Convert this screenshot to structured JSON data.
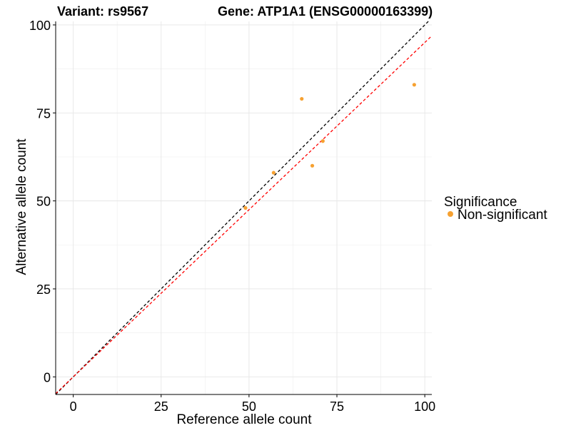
{
  "chart_data": {
    "type": "scatter",
    "title_left": "Variant: rs9567",
    "title_right": "Gene: ATP1A1 (ENSG00000163399)",
    "xlabel": "Reference allele count",
    "ylabel": "Alternative allele count",
    "xlim": [
      -5,
      102
    ],
    "ylim": [
      -5,
      101
    ],
    "xticks": [
      0,
      25,
      50,
      75,
      100
    ],
    "yticks": [
      0,
      25,
      50,
      75,
      100
    ],
    "grid": true,
    "series": [
      {
        "name": "Non-significant",
        "color": "#F6A131",
        "points": [
          {
            "x": 49,
            "y": 48
          },
          {
            "x": 57,
            "y": 58
          },
          {
            "x": 65,
            "y": 79
          },
          {
            "x": 68,
            "y": 60
          },
          {
            "x": 71,
            "y": 67
          },
          {
            "x": 97,
            "y": 83
          }
        ]
      }
    ],
    "reference_lines": [
      {
        "name": "identity-line",
        "slope": 1.0,
        "intercept": 0,
        "color": "#000000",
        "style": "dashed"
      },
      {
        "name": "fit-line",
        "slope": 0.95,
        "intercept": 0,
        "color": "#FF0000",
        "style": "dashed"
      }
    ],
    "legend": {
      "title": "Significance",
      "position": "right",
      "entries": [
        {
          "label": "Non-significant",
          "color": "#F6A131"
        }
      ]
    }
  }
}
